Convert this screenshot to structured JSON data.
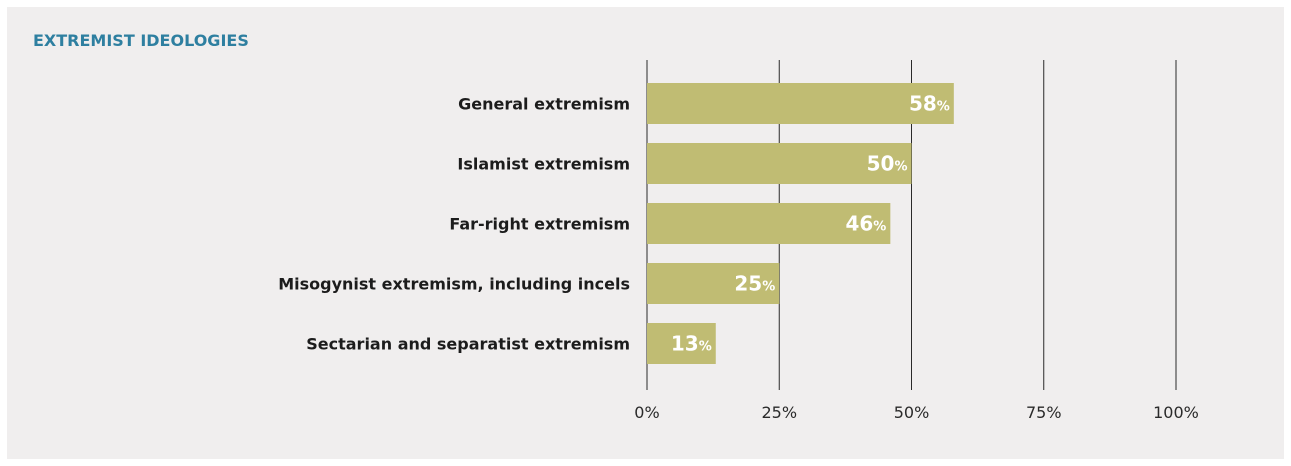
{
  "colors": {
    "panel_background": "#f0eeee",
    "title": "#2e7fa0",
    "bar": "#c0bc73",
    "gridline": "#2a2a2a",
    "value_label": "#ffffff",
    "category_label": "#1c1c1c"
  },
  "chart_data": {
    "type": "bar",
    "orientation": "horizontal",
    "title": "EXTREMIST IDEOLOGIES",
    "xlabel": "",
    "ylabel": "",
    "categories": [
      "General extremism",
      "Islamist extremism",
      "Far-right extremism",
      "Misogynist extremism, including incels",
      "Sectarian and separatist extremism"
    ],
    "values": [
      58,
      50,
      46,
      25,
      13
    ],
    "value_unit": "%",
    "xlim": [
      0,
      100
    ],
    "ticks": [
      0,
      25,
      50,
      75,
      100
    ],
    "tick_labels": [
      "0%",
      "25%",
      "50%",
      "75%",
      "100%"
    ],
    "grid": "vertical"
  }
}
